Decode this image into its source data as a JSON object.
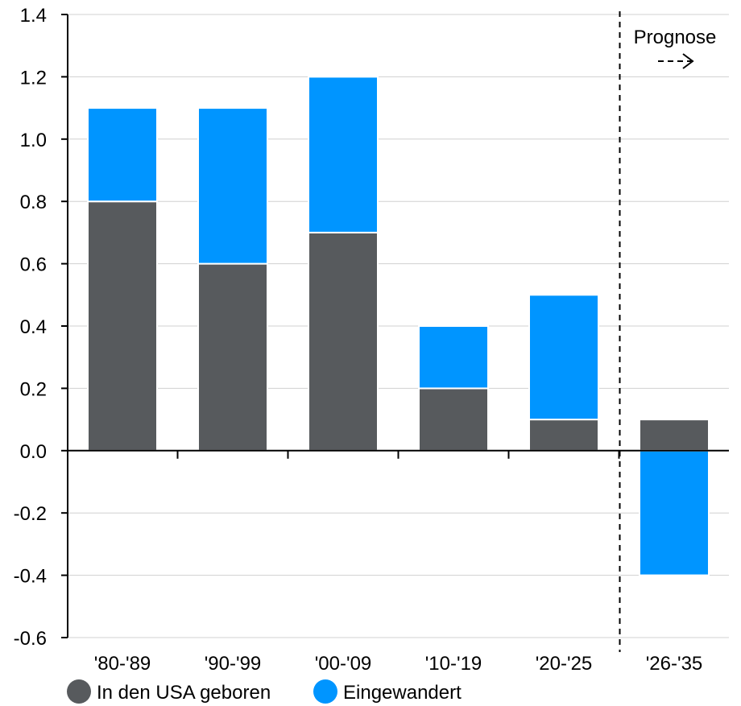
{
  "chart_data": {
    "type": "bar",
    "stacked": true,
    "categories": [
      "'80-'89",
      "'90-'99",
      "'00-'09",
      "'10-'19",
      "'20-'25",
      "'26-'35"
    ],
    "series": [
      {
        "name": "In den USA geboren",
        "color": "#575a5d",
        "values": [
          0.8,
          0.6,
          0.7,
          0.2,
          0.1,
          0.1
        ]
      },
      {
        "name": "Eingewandert",
        "color": "#0095ff",
        "values": [
          0.3,
          0.5,
          0.5,
          0.2,
          0.4,
          -0.4
        ]
      }
    ],
    "ylim": [
      -0.6,
      1.4
    ],
    "yticks": [
      "1.4",
      "1.2",
      "1.0",
      "0.8",
      "0.6",
      "0.4",
      "0.2",
      "0.0",
      "-0.2",
      "-0.4",
      "-0.6"
    ],
    "ytick_values": [
      1.4,
      1.2,
      1.0,
      0.8,
      0.6,
      0.4,
      0.2,
      0.0,
      -0.2,
      -0.4,
      -0.6
    ],
    "grid": true,
    "legend_placement": "bottom-left",
    "forecast_label": "Prognose",
    "forecast_start_category": "'26-'35"
  }
}
